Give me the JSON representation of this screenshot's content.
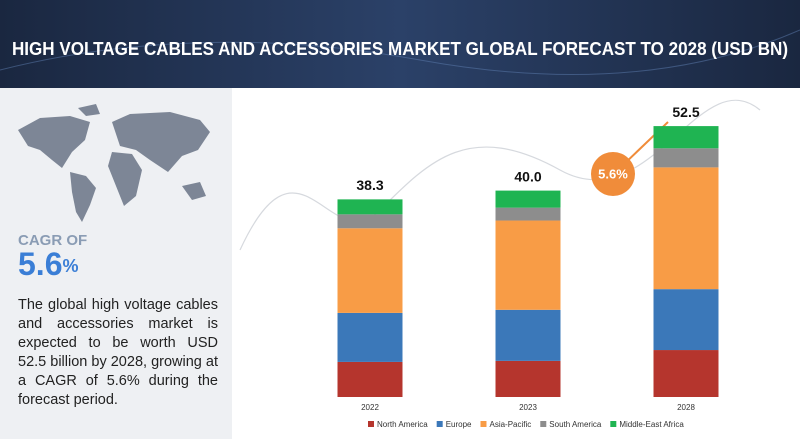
{
  "title": "HIGH VOLTAGE CABLES AND ACCESSORIES MARKET GLOBAL FORECAST TO 2028 (USD BN)",
  "cagr_caption": "CAGR OF",
  "cagr_number": "5.6",
  "cagr_unit": "%",
  "description": "The global high voltage cables and accessories market is expected to be worth USD 52.5 billion by 2028, growing at a CAGR of 5.6% during the forecast period.",
  "chart_data": {
    "type": "stacked-bar",
    "categories": [
      "2022",
      "2023",
      "2028"
    ],
    "series": [
      {
        "name": "North America",
        "color": "#b5352d",
        "values": [
          6.8,
          7.0,
          9.1
        ]
      },
      {
        "name": "Europe",
        "color": "#3b78b9",
        "values": [
          9.5,
          9.9,
          11.8
        ]
      },
      {
        "name": "Asia-Pacific",
        "color": "#f89c46",
        "values": [
          16.4,
          17.3,
          23.6
        ]
      },
      {
        "name": "South America",
        "color": "#8d8d8d",
        "values": [
          2.7,
          2.5,
          3.7
        ]
      },
      {
        "name": "Middle-East Africa",
        "color": "#1fb452",
        "values": [
          2.9,
          3.3,
          4.3
        ]
      }
    ],
    "totals": {
      "values": [
        38.3,
        40.0,
        52.5
      ],
      "value_labels": [
        "38.3",
        "40.0",
        "52.5"
      ]
    },
    "cagr_badge": "5.6%"
  }
}
